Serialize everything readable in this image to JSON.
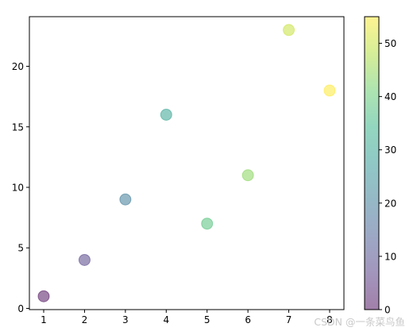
{
  "chart_data": {
    "type": "scatter",
    "x": [
      1,
      2,
      3,
      4,
      5,
      6,
      7,
      8
    ],
    "y": [
      1,
      4,
      9,
      16,
      7,
      11,
      23,
      18
    ],
    "color_values": [
      0,
      8,
      20,
      30,
      38,
      44,
      50,
      55
    ],
    "colormap": "viridis",
    "alpha": 0.5,
    "marker_size": 100,
    "xlim": [
      0.65,
      8.35
    ],
    "ylim": [
      -0.1,
      24.1
    ],
    "xticks": [
      1,
      2,
      3,
      4,
      5,
      6,
      7,
      8
    ],
    "yticks": [
      0,
      5,
      10,
      15,
      20
    ],
    "colorbar": {
      "range": [
        0,
        55
      ],
      "ticks": [
        0,
        10,
        20,
        30,
        40,
        50
      ]
    },
    "grid": false
  },
  "watermark": {
    "text": "CSDN @一条菜鸟鱼"
  }
}
